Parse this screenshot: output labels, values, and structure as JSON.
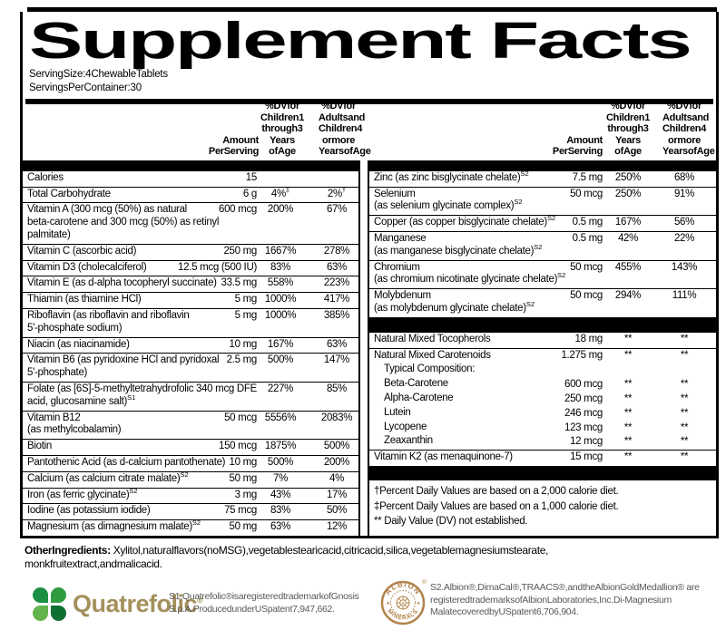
{
  "title": "Supplement Facts",
  "serving_size": "ServingSize:4ChewableTablets",
  "servings_per_container": "ServingsPerContainer:30",
  "columns": {
    "amount": [
      "Amount",
      "PerServing"
    ],
    "dv_children": [
      "%DVfor",
      "Children1",
      "through3",
      "Years",
      "ofAge"
    ],
    "dv_adults": [
      "%DVfor",
      "Adultsand",
      "Children4",
      "ormore",
      "YearsofAge"
    ]
  },
  "left_rows": [
    {
      "name": [
        "Calories"
      ],
      "amount": "15"
    },
    {
      "name": [
        "Total Carbohydrate"
      ],
      "amount": "6 g",
      "dv1": "4%",
      "dv1_sup": "‡",
      "dv2": "2%",
      "dv2_sup": "†"
    },
    {
      "name": [
        "Vitamin A (300 mcg (50%) as natural",
        "beta-carotene and 300 mcg (50%) as retinyl",
        "palmitate)"
      ],
      "amount": "600 mcg",
      "dv1": "200%",
      "dv2": "67%"
    },
    {
      "name": [
        "Vitamin C (ascorbic acid)"
      ],
      "amount": "250 mg",
      "dv1": "1667%",
      "dv2": "278%"
    },
    {
      "name": [
        "Vitamin D3 (cholecalciferol)"
      ],
      "amount": "12.5 mcg (500 IU)",
      "dv1": "83%",
      "dv2": "63%"
    },
    {
      "name": [
        "Vitamin E (as d-alpha tocopheryl succinate)"
      ],
      "amount": "33.5 mg",
      "dv1": "558%",
      "dv2": "223%"
    },
    {
      "name": [
        "Thiamin (as thiamine HCl)"
      ],
      "amount": "5 mg",
      "dv1": "1000%",
      "dv2": "417%"
    },
    {
      "name": [
        "Riboflavin (as riboflavin and riboflavin",
        "5'-phosphate sodium)"
      ],
      "amount": "5 mg",
      "dv1": "1000%",
      "dv2": "385%"
    },
    {
      "name": [
        "Niacin (as niacinamide)"
      ],
      "amount": "10 mg",
      "dv1": "167%",
      "dv2": "63%"
    },
    {
      "name": [
        "Vitamin B6 (as pyridoxine HCl and pyridoxal",
        "5'-phosphate)"
      ],
      "amount": "2.5 mg",
      "dv1": "500%",
      "dv2": "147%"
    },
    {
      "name": [
        "Folate (as [6S]-5-methyltetrahydrofolic",
        "acid, glucosamine salt)"
      ],
      "sup": "S1",
      "amount": "340 mcg DFE",
      "dv1": "227%",
      "dv2": "85%"
    },
    {
      "name": [
        "Vitamin B12",
        "(as methylcobalamin)"
      ],
      "amount": "50 mcg",
      "dv1": "5556%",
      "dv2": "2083%"
    },
    {
      "name": [
        "Biotin"
      ],
      "amount": "150 mcg",
      "dv1": "1875%",
      "dv2": "500%"
    },
    {
      "name": [
        "Pantothenic Acid (as d-calcium pantothenate)"
      ],
      "amount": "10 mg",
      "dv1": "500%",
      "dv2": "200%"
    },
    {
      "name": [
        "Calcium (as calcium citrate malate)"
      ],
      "sup": "S2",
      "amount": "50 mg",
      "dv1": "7%",
      "dv2": "4%"
    },
    {
      "name": [
        "Iron (as ferric glycinate)"
      ],
      "sup": "S2",
      "amount": "3 mg",
      "dv1": "43%",
      "dv2": "17%"
    },
    {
      "name": [
        "Iodine (as potassium iodide)"
      ],
      "amount": "75 mcg",
      "dv1": "83%",
      "dv2": "50%"
    },
    {
      "name": [
        "Magnesium (as dimagnesium malate)"
      ],
      "sup": "S2",
      "amount": "50 mg",
      "dv1": "63%",
      "dv2": "12%"
    }
  ],
  "right_rows": [
    {
      "name": [
        "Zinc (as zinc bisglycinate chelate)"
      ],
      "sup": "S2",
      "amount": "7.5 mg",
      "dv1": "250%",
      "dv2": "68%"
    },
    {
      "name": [
        "Selenium",
        "(as selenium glycinate complex)"
      ],
      "sup": "S2",
      "amount": "50 mcg",
      "dv1": "250%",
      "dv2": "91%"
    },
    {
      "name": [
        "Copper (as copper bisglycinate chelate)"
      ],
      "sup": "S2",
      "amount": "0.5 mg",
      "dv1": "167%",
      "dv2": "56%"
    },
    {
      "name": [
        "Manganese",
        "(as manganese bisglycinate chelate)"
      ],
      "sup": "S2",
      "amount": "0.5 mg",
      "dv1": "42%",
      "dv2": "22%"
    },
    {
      "name": [
        "Chromium",
        "(as chromium nicotinate glycinate chelate)"
      ],
      "sup": "S2",
      "amount": "50 mcg",
      "dv1": "455%",
      "dv2": "143%"
    },
    {
      "name": [
        "Molybdenum",
        "(as molybdenum glycinate chelate)"
      ],
      "sup": "S2",
      "amount": "50 mcg",
      "dv1": "294%",
      "dv2": "111%"
    },
    {
      "bar": true
    },
    {
      "name": [
        "Natural Mixed Tocopherols"
      ],
      "amount": "18 mg",
      "dv1": "**",
      "dv2": "**"
    },
    {
      "name": [
        "Natural Mixed Carotenoids"
      ],
      "amount": "1.275 mg",
      "dv1": "**",
      "dv2": "**"
    },
    {
      "name": [
        "Typical Composition:"
      ],
      "indent": true,
      "no_rule": true
    },
    {
      "name": [
        "Beta-Carotene"
      ],
      "amount": "600 mcg",
      "dv1": "**",
      "dv2": "**",
      "indent": true,
      "no_rule": true
    },
    {
      "name": [
        "Alpha-Carotene"
      ],
      "amount": "250 mcg",
      "dv1": "**",
      "dv2": "**",
      "indent": true,
      "no_rule": true
    },
    {
      "name": [
        "Lutein"
      ],
      "amount": "246 mcg",
      "dv1": "**",
      "dv2": "**",
      "indent": true,
      "no_rule": true
    },
    {
      "name": [
        "Lycopene"
      ],
      "amount": "123 mcg",
      "dv1": "**",
      "dv2": "**",
      "indent": true,
      "no_rule": true
    },
    {
      "name": [
        "Zeaxanthin"
      ],
      "amount": "12 mcg",
      "dv1": "**",
      "dv2": "**",
      "indent": true,
      "no_rule": true
    },
    {
      "name": [
        "Vitamin K2 (as menaquinone-7)"
      ],
      "amount": "15 mcg",
      "dv1": "**",
      "dv2": "**"
    },
    {
      "bar": true
    }
  ],
  "footnotes": [
    "†Percent Daily Values are based on a 2,000 calorie diet.",
    "‡Percent Daily Values are based on a 1,000 calorie diet.",
    "**  Daily Value (DV) not established."
  ],
  "other": {
    "label": "OtherIngredients:",
    "lines": [
      "Xylitol,naturalflavors(noMSG),vegetablestearicacid,citricacid,silica,vegetablemagnesiumstearate,",
      "monkfruitextract,andmalicacid."
    ]
  },
  "quatrefolic": {
    "wordmark": "Quatrefolic",
    "reg": "®",
    "lines": [
      "S1.Quatrefolic®isaregisteredtrademarkofGnosis",
      "S.p.A.ProducedunderUSpatent7,947,662."
    ]
  },
  "albion": {
    "arc_top": "ALBION",
    "arc_bottom": "MINERALS",
    "center_letter": "A",
    "reg": "®",
    "lines": [
      "S2.Albion®,DimaCal®,TRAACS®,andtheAlbionGoldMedallion® are",
      "registeredtrademarksofAlbionLaboratories,Inc.Di-Magnesium",
      "MalatecoveredbyUSpatent6,706,904."
    ]
  },
  "colors": {
    "ink_black": "#000000",
    "quatrefolic_wordmark_tan": "#a4905c",
    "clover_greens": [
      "#1b8f43",
      "#2f9c42",
      "#63b24b",
      "#0e6f33"
    ],
    "albion_gold": "#b1824a",
    "fine_print_gray": "#595959"
  }
}
